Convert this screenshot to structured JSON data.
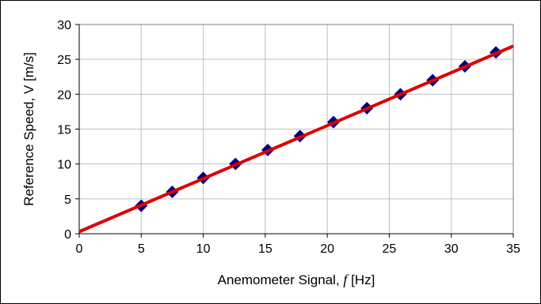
{
  "chart_data": {
    "type": "scatter",
    "title": "",
    "xlabel_prefix": "Anemometer Signal, ",
    "xlabel_symbol": "f",
    "xlabel_suffix": " [Hz]",
    "ylabel": "Reference Speed, V [m/s]",
    "xlim": [
      0,
      35
    ],
    "ylim": [
      0,
      30
    ],
    "x_ticks": [
      0,
      5,
      10,
      15,
      20,
      25,
      30,
      35
    ],
    "y_ticks": [
      0,
      5,
      10,
      15,
      20,
      25,
      30
    ],
    "grid": true,
    "legend": "none",
    "series": [
      {
        "kind": "points",
        "marker": "diamond",
        "color": "#00007f",
        "x": [
          5.0,
          7.5,
          10.0,
          12.6,
          15.2,
          17.8,
          20.5,
          23.2,
          25.9,
          28.5,
          31.1,
          33.6
        ],
        "y": [
          4.0,
          6.0,
          8.0,
          10.0,
          12.0,
          14.0,
          16.0,
          18.0,
          20.0,
          22.0,
          24.0,
          26.0
        ]
      },
      {
        "kind": "fit-line",
        "color": "#dd0000",
        "x": [
          0,
          35
        ],
        "y": [
          0.3,
          26.9
        ]
      }
    ]
  }
}
